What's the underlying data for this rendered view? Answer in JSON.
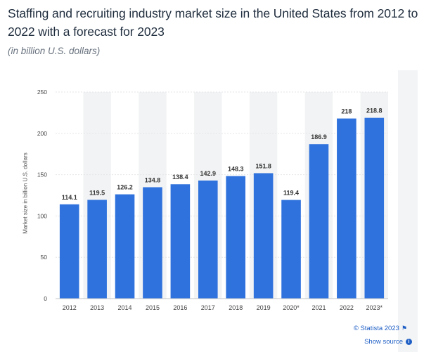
{
  "title": "Staffing and recruiting industry market size in the United States from 2012 to 2022 with a forecast for 2023",
  "subtitle": "(in billion U.S. dollars)",
  "credit": "© Statista 2023",
  "show_source": "Show source",
  "colors": {
    "bar": "#2f72dd",
    "band": "#f2f3f4",
    "grid": "#e4e6e8"
  },
  "chart_data": {
    "type": "bar",
    "title": "Staffing and recruiting industry market size in the United States from 2012 to 2022 with a forecast for 2023",
    "ylabel": "Market size in billion U.S. dollars",
    "xlabel": "",
    "categories": [
      "2012",
      "2013",
      "2014",
      "2015",
      "2016",
      "2017",
      "2018",
      "2019",
      "2020*",
      "2021",
      "2022",
      "2023*"
    ],
    "values": [
      114.1,
      119.5,
      126.2,
      134.8,
      138.4,
      142.9,
      148.3,
      151.8,
      119.4,
      186.9,
      218,
      218.8
    ],
    "value_labels": [
      "114.1",
      "119.5",
      "126.2",
      "134.8",
      "138.4",
      "142.9",
      "148.3",
      "151.8",
      "119.4",
      "186.9",
      "218",
      "218.8"
    ],
    "ylim": [
      0,
      250
    ],
    "yticks": [
      0,
      50,
      100,
      150,
      200,
      250
    ],
    "grid": true
  }
}
